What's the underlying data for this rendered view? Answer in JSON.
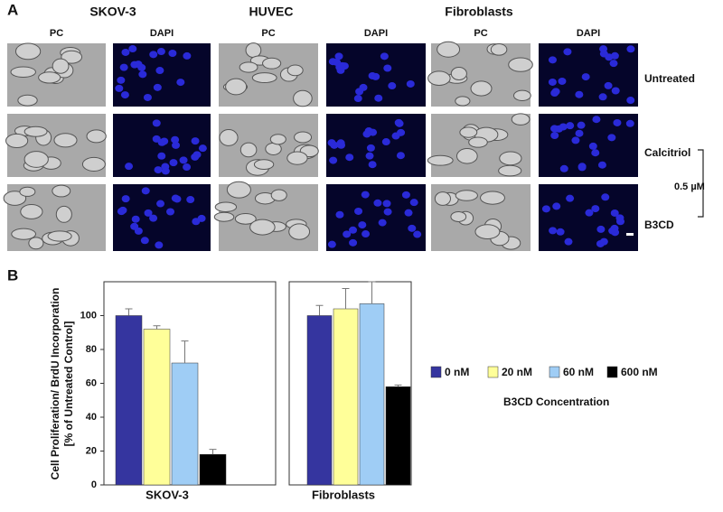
{
  "panel_a": {
    "label": "A",
    "groups": [
      "SKOV-3",
      "HUVEC",
      "Fibroblasts"
    ],
    "columns": [
      "PC",
      "DAPI"
    ],
    "rows": [
      "Untreated",
      "Calcitriol",
      "B3CD"
    ],
    "dose": "0.5 µM"
  },
  "panel_b_label": "B",
  "chart_data": {
    "type": "bar",
    "y_label": [
      "Cell Proliferation/ BrdU Incorporation",
      "[% of Untreated Control]"
    ],
    "categories": [
      "SKOV-3",
      "Fibroblasts"
    ],
    "series": [
      {
        "name": "0 nM",
        "color": "#35359f",
        "values": [
          100,
          100
        ],
        "errors": [
          4,
          6
        ]
      },
      {
        "name": "20 nM",
        "color": "#ffff99",
        "values": [
          92,
          104
        ],
        "errors": [
          2,
          12
        ]
      },
      {
        "name": "60 nM",
        "color": "#9fcdf5",
        "values": [
          72,
          107
        ],
        "errors": [
          13,
          13
        ]
      },
      {
        "name": "600 nM",
        "color": "#000000",
        "values": [
          18,
          58
        ],
        "errors": [
          3,
          1
        ]
      }
    ],
    "legend_title": "B3CD Concentration",
    "ylim": [
      0,
      120
    ],
    "yticks": [
      0,
      20,
      40,
      60,
      80,
      100
    ],
    "grid": false
  }
}
